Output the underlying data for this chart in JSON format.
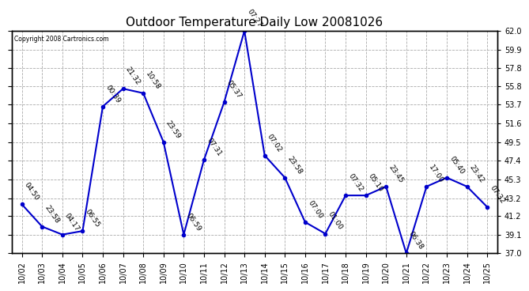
{
  "title": "Outdoor Temperature Daily Low 20081026",
  "copyright": "Copyright 2008 Cartronics.com",
  "x_labels": [
    "10/02",
    "10/03",
    "10/04",
    "10/05",
    "10/06",
    "10/07",
    "10/08",
    "10/09",
    "10/10",
    "10/11",
    "10/12",
    "10/13",
    "10/14",
    "10/15",
    "10/16",
    "10/17",
    "10/18",
    "10/19",
    "10/20",
    "10/21",
    "10/22",
    "10/23",
    "10/24",
    "10/25"
  ],
  "y_values": [
    42.5,
    40.0,
    39.1,
    39.5,
    53.5,
    55.5,
    55.0,
    49.5,
    39.1,
    47.5,
    54.0,
    62.0,
    48.0,
    45.5,
    40.5,
    39.2,
    43.5,
    43.5,
    44.5,
    37.0,
    44.5,
    45.5,
    44.5,
    42.2
  ],
  "point_labels": [
    "04:50",
    "23:58",
    "04:17",
    "06:55",
    "00:39",
    "21:32",
    "10:58",
    "23:59",
    "06:59",
    "07:31",
    "05:37",
    "07:27",
    "07:02",
    "23:58",
    "07:00",
    "01:00",
    "07:32",
    "05:10",
    "23:45",
    "06:38",
    "17:00",
    "05:40",
    "23:42",
    "07:32"
  ],
  "ylim_min": 37.0,
  "ylim_max": 62.0,
  "yticks": [
    37.0,
    39.1,
    41.2,
    43.2,
    45.3,
    47.4,
    49.5,
    51.6,
    53.7,
    55.8,
    57.8,
    59.9,
    62.0
  ],
  "line_color": "#0000cc",
  "marker_color": "#0000cc",
  "bg_color": "#ffffff",
  "plot_bg_color": "#ffffff",
  "grid_color": "#aaaaaa",
  "title_fontsize": 11,
  "tick_fontsize": 7,
  "label_fontsize": 6.5
}
